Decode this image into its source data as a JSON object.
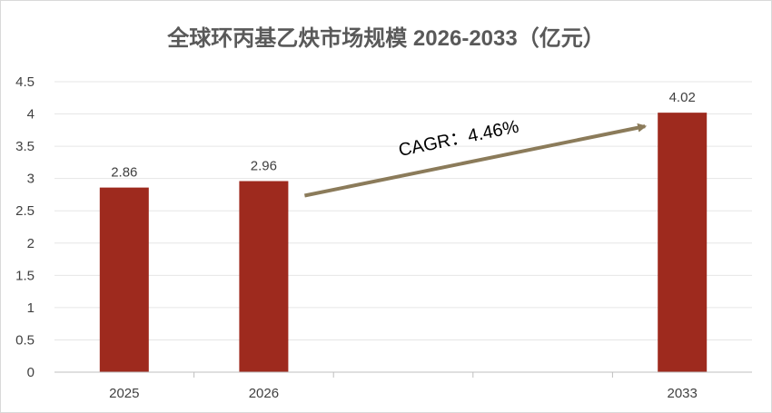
{
  "chart_data": {
    "type": "bar",
    "title": "全球环丙基乙炔市场规模 2026-2033（亿元）",
    "categories": [
      "2025",
      "2026",
      "",
      "",
      "2033"
    ],
    "values": [
      2.86,
      2.96,
      null,
      null,
      4.02
    ],
    "data_labels": [
      "2.86",
      "2.96",
      "",
      "",
      "4.02"
    ],
    "y_ticks": [
      "0",
      "0.5",
      "1",
      "1.5",
      "2",
      "2.5",
      "3",
      "3.5",
      "4",
      "4.5"
    ],
    "ylim": [
      0,
      4.5
    ],
    "grid": true,
    "bar_color": "#9E2A1E",
    "arrow_color": "#8B7B5A",
    "annotation": "CAGR：4.46%",
    "xlabel": "",
    "ylabel": ""
  }
}
